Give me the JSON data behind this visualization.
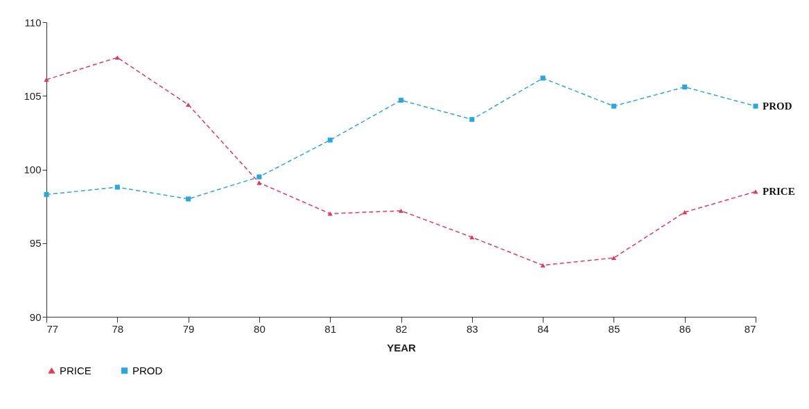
{
  "chart_data": {
    "type": "line",
    "xlabel": "YEAR",
    "x": [
      77,
      78,
      79,
      80,
      81,
      82,
      83,
      84,
      85,
      86,
      87
    ],
    "xlim": [
      77,
      87
    ],
    "xticks": [
      77,
      78,
      79,
      80,
      81,
      82,
      83,
      84,
      85,
      86,
      87
    ],
    "ylim": [
      90,
      110
    ],
    "yticks": [
      90,
      95,
      100,
      105,
      110
    ],
    "grid": false,
    "legend": "bottom",
    "line_style": "dashed",
    "series": [
      {
        "name": "PRICE",
        "color": "#e8365a",
        "marker": "triangle",
        "values": [
          106.1,
          107.6,
          104.4,
          99.1,
          97.0,
          97.2,
          95.4,
          93.5,
          94.0,
          97.1,
          98.5
        ]
      },
      {
        "name": "PROD",
        "color": "#2aa7e0",
        "marker": "square",
        "values": [
          98.3,
          98.8,
          98.0,
          99.5,
          102.0,
          104.7,
          103.4,
          106.2,
          104.3,
          105.6,
          104.3
        ]
      }
    ]
  }
}
